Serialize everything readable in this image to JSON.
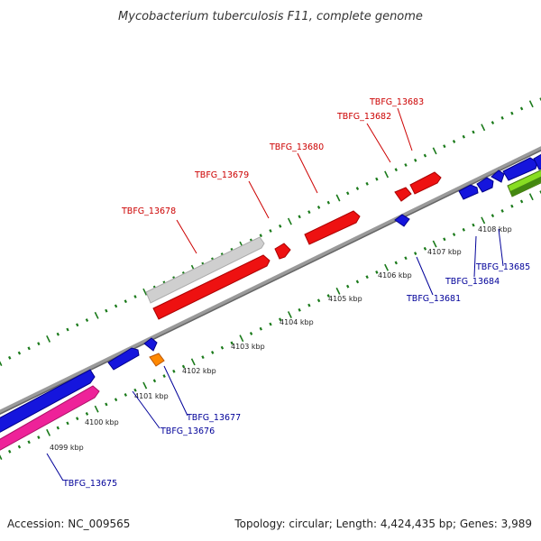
{
  "title": "Mycobacterium tuberculosis F11, complete genome",
  "footer": {
    "accession": "Accession: NC_009565",
    "summary": "Topology: circular; Length: 4,424,435 bp; Genes: 3,989"
  },
  "colors": {
    "forward_label": "#cc0000",
    "reverse_label": "#000099",
    "backbone": "#888888",
    "tick": "#1a7a1a"
  },
  "kbp_labels": [
    "4099 kbp",
    "4100 kbp",
    "4101 kbp",
    "4102 kbp",
    "4103 kbp",
    "4104 kbp",
    "4105 kbp",
    "4106 kbp",
    "4107 kbp",
    "4108 kbp"
  ],
  "forward_gene_labels": [
    "TBFG_13678",
    "TBFG_13679",
    "TBFG_13680",
    "TBFG_13682",
    "TBFG_13683"
  ],
  "reverse_gene_labels": [
    "TBFG_13675",
    "TBFG_13676",
    "TBFG_13677",
    "TBFG_13681",
    "TBFG_13684",
    "TBFG_13685"
  ],
  "feature_colors": {
    "forward_cds": "#ee1111",
    "pseudogene": "#c8c8c8",
    "reverse_cds": "#1515dd",
    "rna_pink": "#ee2299",
    "orange_feature": "#ff8800",
    "green_feature": "#88dd22"
  }
}
